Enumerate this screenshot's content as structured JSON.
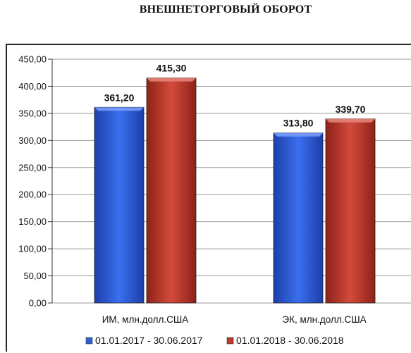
{
  "chart_data": {
    "type": "bar",
    "title": "ВНЕШНЕТОРГОВЫЙ ОБОРОТ",
    "categories": [
      "ИМ, млн.долл.США",
      "ЭК, млн.долл.США"
    ],
    "series": [
      {
        "name": "01.01.2017 - 30.06.2017",
        "values": [
          361.2,
          313.8
        ],
        "value_labels": [
          "361,20",
          "313,80"
        ],
        "color": "#2f5fd4"
      },
      {
        "name": "01.01.2018 - 30.06.2018",
        "values": [
          415.3,
          339.7
        ],
        "value_labels": [
          "415,30",
          "339,70"
        ],
        "color": "#c0392b"
      }
    ],
    "ylim": [
      0,
      450
    ],
    "yticks": [
      0,
      50,
      100,
      150,
      200,
      250,
      300,
      350,
      400,
      450
    ],
    "ytick_labels": [
      "0,00",
      "50,00",
      "100,00",
      "150,00",
      "200,00",
      "250,00",
      "300,00",
      "350,00",
      "400,00",
      "450,00"
    ],
    "xlabel": "",
    "ylabel": "",
    "grid": true,
    "legend_position": "bottom"
  }
}
